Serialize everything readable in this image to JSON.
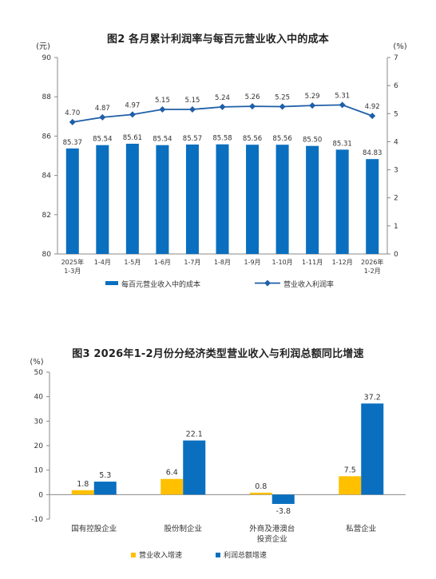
{
  "charts": [
    {
      "id": "chart1",
      "title": "图2  各月累计利润率与每百元营业收入中的成本",
      "left_unit": "(元)",
      "right_unit": "(%)",
      "colors": {
        "bar": "#0a6fbf",
        "line": "#1f5fa8"
      },
      "chart_data": {
        "type": "bar",
        "categories": [
          "2025年\n1-3月",
          "1-4月",
          "1-5月",
          "1-6月",
          "1-7月",
          "1-8月",
          "1-9月",
          "1-10月",
          "1-11月",
          "1-12月",
          "2026年\n1-2月"
        ],
        "series": [
          {
            "name": "每百元营业收入中的成本",
            "type": "bar",
            "axis": "left",
            "values": [
              85.37,
              85.54,
              85.61,
              85.54,
              85.57,
              85.58,
              85.56,
              85.56,
              85.5,
              85.31,
              84.83
            ],
            "labels": [
              "85.37",
              "85.54",
              "85.61",
              "85.54",
              "85.57",
              "85.58",
              "85.56",
              "85.56",
              "85.50",
              "85.31",
              "84.83"
            ]
          },
          {
            "name": "营业收入利润率",
            "type": "line",
            "axis": "right",
            "values": [
              4.7,
              4.87,
              4.97,
              5.15,
              5.15,
              5.24,
              5.26,
              5.25,
              5.29,
              5.31,
              4.92
            ],
            "labels": [
              "4.70",
              "4.87",
              "4.97",
              "5.15",
              "5.15",
              "5.24",
              "5.26",
              "5.25",
              "5.29",
              "5.31",
              "4.92"
            ]
          }
        ],
        "ylim_left": [
          80,
          90
        ],
        "yticks_left": [
          "80",
          "82",
          "84",
          "86",
          "88",
          "90"
        ],
        "ylim_right": [
          0,
          7
        ],
        "yticks_right": [
          "0",
          "1",
          "2",
          "3",
          "4",
          "5",
          "6",
          "7"
        ],
        "legend_placement": "bottom",
        "grid": false
      }
    },
    {
      "id": "chart2",
      "title": "图3  2026年1-2月份分经济类型营业收入与利润总额同比增速",
      "left_unit": "(%)",
      "colors": {
        "s1": "#ffc000",
        "s2": "#0a6fbf"
      },
      "chart_data": {
        "type": "bar",
        "categories": [
          "国有控股企业",
          "股份制企业",
          "外商及港澳台\n投资企业",
          "私营企业"
        ],
        "series": [
          {
            "name": "营业收入增速",
            "values": [
              1.8,
              6.4,
              0.8,
              7.5
            ],
            "labels": [
              "1.8",
              "6.4",
              "0.8",
              "7.5"
            ]
          },
          {
            "name": "利润总额增速",
            "values": [
              5.3,
              22.1,
              -3.8,
              37.2
            ],
            "labels": [
              "5.3",
              "22.1",
              "-3.8",
              "37.2"
            ]
          }
        ],
        "ylim": [
          -10,
          50
        ],
        "yticks": [
          "-10",
          "0",
          "10",
          "20",
          "30",
          "40",
          "50"
        ],
        "legend_placement": "bottom",
        "grid": false
      }
    }
  ]
}
